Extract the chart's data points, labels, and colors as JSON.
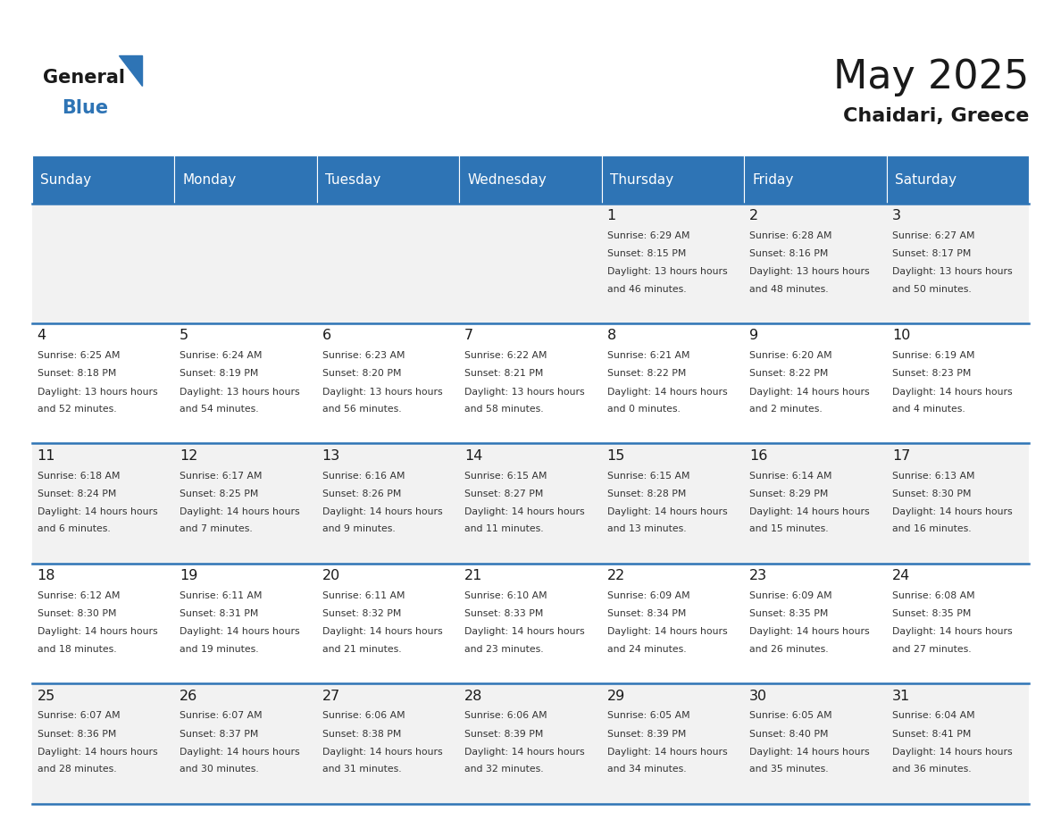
{
  "title": "May 2025",
  "subtitle": "Chaidari, Greece",
  "days_of_week": [
    "Sunday",
    "Monday",
    "Tuesday",
    "Wednesday",
    "Thursday",
    "Friday",
    "Saturday"
  ],
  "header_bg": "#2E74B5",
  "header_text_color": "#FFFFFF",
  "cell_bg_odd": "#F2F2F2",
  "cell_bg_even": "#FFFFFF",
  "separator_color": "#2E74B5",
  "text_color": "#333333",
  "day_number_color": "#1a1a1a",
  "calendar_data": [
    [
      null,
      null,
      null,
      null,
      {
        "day": 1,
        "sunrise": "6:29 AM",
        "sunset": "8:15 PM",
        "daylight": "13 hours and 46 minutes"
      },
      {
        "day": 2,
        "sunrise": "6:28 AM",
        "sunset": "8:16 PM",
        "daylight": "13 hours and 48 minutes"
      },
      {
        "day": 3,
        "sunrise": "6:27 AM",
        "sunset": "8:17 PM",
        "daylight": "13 hours and 50 minutes"
      }
    ],
    [
      {
        "day": 4,
        "sunrise": "6:25 AM",
        "sunset": "8:18 PM",
        "daylight": "13 hours and 52 minutes"
      },
      {
        "day": 5,
        "sunrise": "6:24 AM",
        "sunset": "8:19 PM",
        "daylight": "13 hours and 54 minutes"
      },
      {
        "day": 6,
        "sunrise": "6:23 AM",
        "sunset": "8:20 PM",
        "daylight": "13 hours and 56 minutes"
      },
      {
        "day": 7,
        "sunrise": "6:22 AM",
        "sunset": "8:21 PM",
        "daylight": "13 hours and 58 minutes"
      },
      {
        "day": 8,
        "sunrise": "6:21 AM",
        "sunset": "8:22 PM",
        "daylight": "14 hours and 0 minutes"
      },
      {
        "day": 9,
        "sunrise": "6:20 AM",
        "sunset": "8:22 PM",
        "daylight": "14 hours and 2 minutes"
      },
      {
        "day": 10,
        "sunrise": "6:19 AM",
        "sunset": "8:23 PM",
        "daylight": "14 hours and 4 minutes"
      }
    ],
    [
      {
        "day": 11,
        "sunrise": "6:18 AM",
        "sunset": "8:24 PM",
        "daylight": "14 hours and 6 minutes"
      },
      {
        "day": 12,
        "sunrise": "6:17 AM",
        "sunset": "8:25 PM",
        "daylight": "14 hours and 7 minutes"
      },
      {
        "day": 13,
        "sunrise": "6:16 AM",
        "sunset": "8:26 PM",
        "daylight": "14 hours and 9 minutes"
      },
      {
        "day": 14,
        "sunrise": "6:15 AM",
        "sunset": "8:27 PM",
        "daylight": "14 hours and 11 minutes"
      },
      {
        "day": 15,
        "sunrise": "6:15 AM",
        "sunset": "8:28 PM",
        "daylight": "14 hours and 13 minutes"
      },
      {
        "day": 16,
        "sunrise": "6:14 AM",
        "sunset": "8:29 PM",
        "daylight": "14 hours and 15 minutes"
      },
      {
        "day": 17,
        "sunrise": "6:13 AM",
        "sunset": "8:30 PM",
        "daylight": "14 hours and 16 minutes"
      }
    ],
    [
      {
        "day": 18,
        "sunrise": "6:12 AM",
        "sunset": "8:30 PM",
        "daylight": "14 hours and 18 minutes"
      },
      {
        "day": 19,
        "sunrise": "6:11 AM",
        "sunset": "8:31 PM",
        "daylight": "14 hours and 19 minutes"
      },
      {
        "day": 20,
        "sunrise": "6:11 AM",
        "sunset": "8:32 PM",
        "daylight": "14 hours and 21 minutes"
      },
      {
        "day": 21,
        "sunrise": "6:10 AM",
        "sunset": "8:33 PM",
        "daylight": "14 hours and 23 minutes"
      },
      {
        "day": 22,
        "sunrise": "6:09 AM",
        "sunset": "8:34 PM",
        "daylight": "14 hours and 24 minutes"
      },
      {
        "day": 23,
        "sunrise": "6:09 AM",
        "sunset": "8:35 PM",
        "daylight": "14 hours and 26 minutes"
      },
      {
        "day": 24,
        "sunrise": "6:08 AM",
        "sunset": "8:35 PM",
        "daylight": "14 hours and 27 minutes"
      }
    ],
    [
      {
        "day": 25,
        "sunrise": "6:07 AM",
        "sunset": "8:36 PM",
        "daylight": "14 hours and 28 minutes"
      },
      {
        "day": 26,
        "sunrise": "6:07 AM",
        "sunset": "8:37 PM",
        "daylight": "14 hours and 30 minutes"
      },
      {
        "day": 27,
        "sunrise": "6:06 AM",
        "sunset": "8:38 PM",
        "daylight": "14 hours and 31 minutes"
      },
      {
        "day": 28,
        "sunrise": "6:06 AM",
        "sunset": "8:39 PM",
        "daylight": "14 hours and 32 minutes"
      },
      {
        "day": 29,
        "sunrise": "6:05 AM",
        "sunset": "8:39 PM",
        "daylight": "14 hours and 34 minutes"
      },
      {
        "day": 30,
        "sunrise": "6:05 AM",
        "sunset": "8:40 PM",
        "daylight": "14 hours and 35 minutes"
      },
      {
        "day": 31,
        "sunrise": "6:04 AM",
        "sunset": "8:41 PM",
        "daylight": "14 hours and 36 minutes"
      }
    ]
  ],
  "logo_general_color": "#1a1a1a",
  "logo_blue_color": "#2E74B5"
}
